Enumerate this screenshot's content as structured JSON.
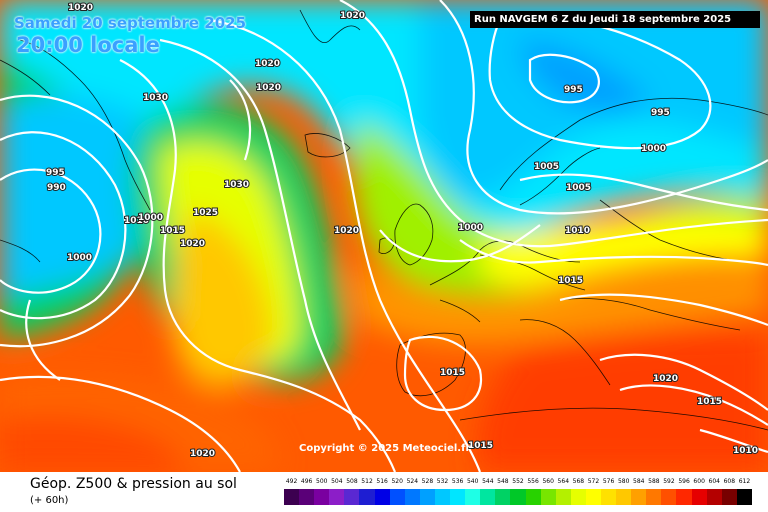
{
  "header": {
    "valid_date": "Samedi 20 septembre 2025",
    "local_time": "20:00 locale",
    "run_info": "Run NAVGEM 6 Z du Jeudi 18 septembre 2025"
  },
  "footer": {
    "title": "Géop. Z500 & pression au sol",
    "subtitle": "(+ 60h)",
    "copyright": "Copyright © 2025 Meteociel.fr"
  },
  "legend": {
    "ticks": [
      "492",
      "496",
      "500",
      "504",
      "508",
      "512",
      "516",
      "520",
      "524",
      "528",
      "532",
      "536",
      "540",
      "544",
      "548",
      "552",
      "556",
      "560",
      "564",
      "568",
      "572",
      "576",
      "580",
      "584",
      "588",
      "592",
      "596",
      "600",
      "604",
      "608",
      "612"
    ],
    "colors": [
      "#3c0050",
      "#5a0078",
      "#7a00a0",
      "#8c1ec8",
      "#5a28d2",
      "#1e1ed2",
      "#0000e6",
      "#0050ff",
      "#0078ff",
      "#00a0ff",
      "#00c8ff",
      "#00e6ff",
      "#1effe6",
      "#00e6a0",
      "#00d264",
      "#00c828",
      "#28d200",
      "#78e600",
      "#b4f000",
      "#e6ff00",
      "#ffff00",
      "#ffe100",
      "#ffc800",
      "#ffa000",
      "#ff7800",
      "#ff5000",
      "#ff2800",
      "#e60000",
      "#b40000",
      "#780000",
      "#000000"
    ]
  },
  "pressure_labels": [
    {
      "value": "1020"
    },
    {
      "value": "1020"
    },
    {
      "value": "1020"
    },
    {
      "value": "1020"
    },
    {
      "value": "1030"
    },
    {
      "value": "995"
    },
    {
      "value": "990"
    },
    {
      "value": "1000"
    },
    {
      "value": "1010"
    },
    {
      "value": "1015"
    },
    {
      "value": "1025"
    },
    {
      "value": "1020"
    },
    {
      "value": "1030"
    },
    {
      "value": "1000"
    },
    {
      "value": "1020"
    },
    {
      "value": "1000"
    },
    {
      "value": "1005"
    },
    {
      "value": "1005"
    },
    {
      "value": "1010"
    },
    {
      "value": "995"
    },
    {
      "value": "995"
    },
    {
      "value": "1000"
    },
    {
      "value": "1015"
    },
    {
      "value": "1015"
    },
    {
      "value": "1020"
    },
    {
      "value": "1015"
    },
    {
      "value": "1020"
    },
    {
      "value": "1015"
    },
    {
      "value": "1010"
    }
  ]
}
